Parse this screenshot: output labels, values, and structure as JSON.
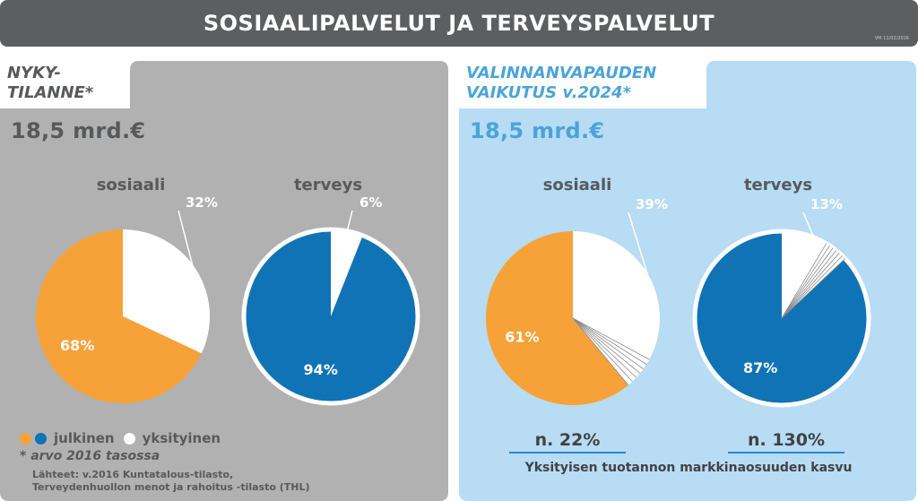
{
  "header": {
    "title": "SOSIAALIPALVELUT JA TERVEYSPALVELUT",
    "code": "VM 11/02/2016"
  },
  "colors": {
    "orange": "#f7a238",
    "blue": "#1073b6",
    "white": "#ffffff",
    "grey_panel": "#b1b1b1",
    "blue_panel": "#b7dcf3",
    "accent_text": "#4ba4d8"
  },
  "left": {
    "title": "NYKY-\nTILANNE*",
    "total": "18,5 mrd.€",
    "legend": {
      "public": "julkinen",
      "private": "yksityinen"
    },
    "note": "* arvo 2016 tasossa",
    "source_line1": "Lähteet: v.2016 Kuntatalous-tilasto,",
    "source_line2": "Terveydenhuollon menot ja rahoitus -tilasto (THL)"
  },
  "right": {
    "title": "VALINNANVAPAUDEN\nVAIKUTUS v.2024*",
    "total": "18,5 mrd.€",
    "growth_social": "n. 22%",
    "growth_health": "n. 130%",
    "growth_caption": "Yksityisen tuotannon markkinaosuuden kasvu"
  },
  "chart_data": [
    {
      "type": "pie",
      "title": "sosiaali",
      "panel": "NYKY-TILANNE",
      "labels": [
        "julkinen",
        "yksityinen"
      ],
      "values": [
        68,
        32
      ],
      "value_labels": [
        "68%",
        "32%"
      ]
    },
    {
      "type": "pie",
      "title": "terveys",
      "panel": "NYKY-TILANNE",
      "labels": [
        "julkinen",
        "yksityinen"
      ],
      "values": [
        94,
        6
      ],
      "value_labels": [
        "94%",
        "6%"
      ]
    },
    {
      "type": "pie",
      "title": "sosiaali",
      "panel": "VALINNANVAPAUDEN VAIKUTUS v.2024",
      "labels": [
        "julkinen",
        "yksityinen"
      ],
      "values": [
        61,
        39
      ],
      "value_labels": [
        "61%",
        "39%"
      ]
    },
    {
      "type": "pie",
      "title": "terveys",
      "panel": "VALINNANVAPAUDEN VAIKUTUS v.2024",
      "labels": [
        "julkinen",
        "yksityinen"
      ],
      "values": [
        87,
        13
      ],
      "value_labels": [
        "87%",
        "13%"
      ]
    }
  ]
}
